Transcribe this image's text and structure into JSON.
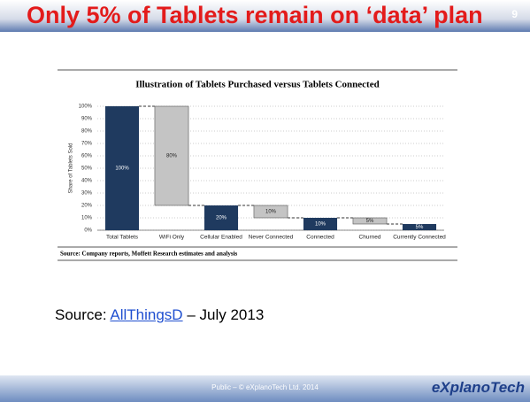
{
  "slide": {
    "title": "Only 5% of Tablets remain on ‘data’ plan",
    "page_number": "9",
    "source": {
      "prefix": "Source:",
      "link": "AllThingsD",
      "suffix": "– July 2013"
    },
    "footer": "Public – © eXplanoTech Ltd. 2014",
    "logo": "eXplanoTech"
  },
  "chart_data": {
    "type": "waterfall",
    "title": "Illustration of Tablets Purchased versus Tablets Connected",
    "y_label": "Share of Tablets Sold",
    "categories": [
      "Total Tablets",
      "WiFi Only",
      "Cellular Enabled",
      "Never Connected",
      "Connected",
      "Churned",
      "Currently Connected"
    ],
    "values": [
      100,
      80,
      20,
      10,
      10,
      5,
      5
    ],
    "value_labels": [
      "100%",
      "80%",
      "20%",
      "10%",
      "10%",
      "5%",
      "5%"
    ],
    "measures": [
      "total",
      "decrease",
      "total",
      "decrease",
      "total",
      "decrease",
      "total"
    ],
    "colors": {
      "total": "#1f3a5f",
      "decrease": "#c4c4c4"
    },
    "ylim": [
      0,
      100
    ],
    "yticks": [
      {
        "value": 0,
        "label": "0%"
      },
      {
        "value": 10,
        "label": "10%"
      },
      {
        "value": 20,
        "label": "20%"
      },
      {
        "value": 30,
        "label": "30%"
      },
      {
        "value": 40,
        "label": "40%"
      },
      {
        "value": 50,
        "label": "50%"
      },
      {
        "value": 60,
        "label": "60%"
      },
      {
        "value": 70,
        "label": "70%"
      },
      {
        "value": 80,
        "label": "80%"
      },
      {
        "value": 90,
        "label": "90%"
      },
      {
        "value": 100,
        "label": "100%"
      }
    ],
    "grid": true,
    "note": "Source: Company reports, Moffett Research estimates and analysis"
  }
}
